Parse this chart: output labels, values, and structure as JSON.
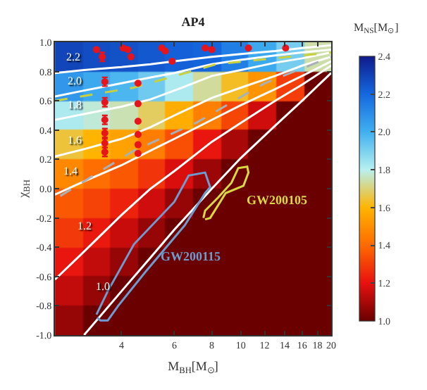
{
  "chart_data": {
    "type": "heatmap",
    "title": "AP4",
    "xlabel": "M$_{BH}$[M$_{⊙}$]",
    "ylabel": "χ$_{BH}$",
    "clabel": "M$_{NS}$[M$_{⊙}$]",
    "x": [
      2.67,
      3.3,
      4.08,
      5.04,
      6.23,
      7.7,
      9.52,
      11.8,
      14.6,
      18.0
    ],
    "y": [
      0.9,
      0.7,
      0.5,
      0.3,
      0.1,
      -0.1,
      -0.3,
      -0.5,
      -0.7,
      -0.9
    ],
    "cells": [
      [
        2.29,
        2.27,
        2.26,
        2.24,
        2.22,
        2.21,
        2.14,
        2.02,
        1.91,
        1.74
      ],
      [
        2.07,
        2.02,
        1.98,
        1.92,
        1.82,
        1.73,
        1.63,
        1.51,
        1.3,
        1.0
      ],
      [
        1.82,
        1.78,
        1.75,
        1.68,
        1.58,
        1.46,
        1.32,
        1.16,
        1.0,
        1.0
      ],
      [
        1.65,
        1.6,
        1.55,
        1.45,
        1.34,
        1.21,
        1.1,
        1.0,
        1.0,
        1.0
      ],
      [
        1.48,
        1.41,
        1.36,
        1.28,
        1.18,
        1.08,
        1.0,
        1.0,
        1.0,
        1.0
      ],
      [
        1.36,
        1.31,
        1.24,
        1.16,
        1.07,
        1.0,
        1.0,
        1.0,
        1.0,
        1.0
      ],
      [
        1.29,
        1.22,
        1.15,
        1.07,
        1.0,
        1.0,
        1.0,
        1.0,
        1.0,
        1.0
      ],
      [
        1.21,
        1.14,
        1.07,
        1.0,
        1.0,
        1.0,
        1.0,
        1.0,
        1.0,
        1.0
      ],
      [
        1.14,
        1.07,
        1.0,
        1.0,
        1.0,
        1.0,
        1.0,
        1.0,
        1.0,
        1.0
      ],
      [
        1.07,
        1.0,
        1.0,
        1.0,
        1.0,
        1.0,
        1.0,
        1.0,
        1.0,
        1.0
      ]
    ],
    "colors": [
      "#6a0000",
      "#e81010",
      "#ff6a00",
      "#ffb400",
      "#b8f0f0",
      "#40b0f0",
      "#1468e0",
      "#101a8c"
    ],
    "clim": [
      1.0,
      2.4
    ],
    "cticks": [
      {
        "value": 1.0,
        "label": "1.0"
      },
      1.2,
      1.4,
      1.6,
      1.8,
      {
        "value": 2.0,
        "label": "2.0"
      },
      2.2,
      2.4
    ],
    "log": "x",
    "xlim": [
      2.4,
      20
    ],
    "xticks": [
      4,
      6,
      8,
      10,
      12,
      14,
      16,
      18,
      20
    ],
    "ylim": [
      -1.0,
      1.0
    ],
    "yticks": [
      {
        "value": -1.0,
        "label": "-1.0"
      },
      -0.8,
      -0.6,
      -0.4,
      -0.2,
      {
        "value": 0.0,
        "label": "0.0"
      },
      0.2,
      0.4,
      0.6,
      0.8,
      {
        "value": 1.0,
        "label": "1.0"
      }
    ],
    "series": [
      {
        "type": "line",
        "color": "#ffffff",
        "x": [
          2.4,
          3,
          4,
          5,
          6,
          8,
          10,
          13,
          16,
          20
        ],
        "values": [
          0.79,
          0.81,
          0.83,
          0.85,
          0.87,
          0.9,
          0.92,
          0.94,
          0.96,
          0.98
        ]
      },
      {
        "type": "line",
        "color": "#ffffff",
        "x": [
          2.4,
          3,
          4,
          5,
          6,
          8,
          10,
          13,
          16,
          20
        ],
        "values": [
          0.63,
          0.67,
          0.72,
          0.76,
          0.79,
          0.85,
          0.88,
          0.91,
          0.93,
          0.95
        ]
      },
      {
        "type": "line",
        "color": "#ffffff",
        "x": [
          2.4,
          3,
          4,
          5,
          6,
          8,
          10,
          13,
          16,
          20
        ],
        "values": [
          0.47,
          0.51,
          0.56,
          0.61,
          0.67,
          0.77,
          0.81,
          0.86,
          0.89,
          0.93
        ]
      },
      {
        "type": "line",
        "color": "#ffffff",
        "x": [
          2.4,
          3,
          4,
          5,
          6,
          8,
          10,
          13,
          16,
          20
        ],
        "values": [
          0.22,
          0.27,
          0.34,
          0.42,
          0.5,
          0.62,
          0.69,
          0.77,
          0.84,
          0.9
        ]
      },
      {
        "type": "line",
        "color": "#ffffff",
        "x": [
          2.4,
          3,
          4,
          5,
          6,
          8,
          10,
          13,
          16,
          20
        ],
        "values": [
          -0.04,
          0.05,
          0.16,
          0.26,
          0.34,
          0.47,
          0.57,
          0.68,
          0.77,
          0.87
        ]
      },
      {
        "type": "line",
        "color": "#ffffff",
        "x": [
          2.4,
          3,
          4,
          5,
          6,
          8,
          10,
          13,
          16,
          20
        ],
        "values": [
          -0.62,
          -0.43,
          -0.18,
          0.0,
          0.12,
          0.32,
          0.45,
          0.6,
          0.71,
          0.84
        ]
      },
      {
        "type": "line",
        "color": "#ffffff",
        "x": [
          3,
          4,
          5,
          6,
          8,
          10,
          13,
          16,
          20
        ],
        "values": [
          -1.0,
          -0.7,
          -0.47,
          -0.28,
          0.0,
          0.21,
          0.43,
          0.6,
          0.79
        ]
      },
      {
        "type": "line",
        "color": "#a8b0b8",
        "line_style": "dashed",
        "x": [
          2.5,
          4.4,
          7.1,
          12,
          20
        ],
        "values": [
          -0.05,
          0.26,
          0.45,
          0.72,
          0.9
        ]
      },
      {
        "type": "line",
        "color": "#c8d040",
        "line_style": "dashed",
        "x": [
          2.4,
          4.4,
          8.3,
          20
        ],
        "values": [
          0.6,
          0.69,
          0.85,
          0.93
        ]
      },
      {
        "type": "line",
        "color": "#6e9bd0",
        "x": [
          3.3,
          3.6,
          4.4,
          6.0,
          6.7,
          7.6,
          7.9,
          7.6,
          6.5,
          4.8,
          3.9,
          3.6,
          3.4,
          3.32
        ],
        "values": [
          -0.86,
          -0.7,
          -0.38,
          -0.09,
          0.09,
          0.11,
          0.01,
          -0.03,
          -0.25,
          -0.57,
          -0.8,
          -0.9,
          -0.9,
          -0.88
        ]
      },
      {
        "type": "line",
        "color": "#d8d840",
        "x": [
          7.5,
          7.6,
          8.4,
          9.3,
          9.8,
          10.5,
          10.6,
          10.2,
          8.9,
          7.9,
          7.6
        ],
        "values": [
          -0.2,
          -0.15,
          -0.06,
          0.04,
          0.14,
          0.15,
          0.11,
          0.02,
          -0.03,
          -0.2,
          -0.21
        ]
      },
      {
        "type": "scatter",
        "color": "#e8141c",
        "marker": "circle",
        "x": [
          3.45,
          3.52,
          3.52,
          3.52,
          3.52,
          3.52,
          3.52
        ],
        "values": [
          0.9,
          0.73,
          0.59,
          0.47,
          0.38,
          0.31,
          0.25
        ],
        "errors": [
          0.03,
          0.03,
          0.03,
          0.03,
          0.03,
          0.03,
          0.03
        ]
      },
      {
        "type": "scatter",
        "color": "#e8141c",
        "marker": "circle",
        "x": [
          3.3,
          4.05,
          4.2,
          4.3,
          5.45,
          5.6,
          5.9,
          7.6,
          8.0,
          10.6,
          14.1,
          4.54,
          4.54,
          4.54,
          4.54,
          4.54,
          4.54
        ],
        "values": [
          0.95,
          0.96,
          0.95,
          0.9,
          0.96,
          0.94,
          0.87,
          0.96,
          0.95,
          0.96,
          0.96,
          0.72,
          0.58,
          0.46,
          0.37,
          0.3,
          0.24
        ]
      }
    ],
    "annotations": [
      {
        "text": "2.2",
        "x": 2.76,
        "y": 0.83
      },
      {
        "text": "2.0",
        "x": 2.8,
        "y": 0.66
      },
      {
        "text": "1.8",
        "x": 2.78,
        "y": 0.5
      },
      {
        "text": "1.6",
        "x": 2.8,
        "y": 0.26
      },
      {
        "text": "1.4",
        "x": 3.0,
        "y": 0.05
      },
      {
        "text": "1.2",
        "x": 3.36,
        "y": -0.33
      },
      {
        "text": "1.0",
        "x": 3.85,
        "y": -0.74
      },
      {
        "text": "GW200105",
        "x": 10.2,
        "y": 0.02
      },
      {
        "text": "GW200115",
        "x": 5.3,
        "y": -0.46
      }
    ]
  }
}
